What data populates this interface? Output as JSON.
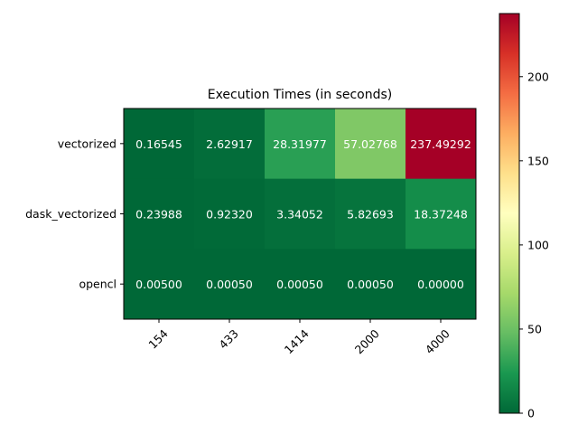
{
  "chart_data": {
    "type": "heatmap",
    "title": "Execution Times (in seconds)",
    "xlabel": "",
    "ylabel": "",
    "x_categories": [
      "154",
      "433",
      "1414",
      "2000",
      "4000"
    ],
    "y_categories": [
      "vectorized",
      "dask_vectorized",
      "opencl"
    ],
    "values": [
      [
        0.16545,
        2.62917,
        28.31977,
        57.02768,
        237.49292
      ],
      [
        0.23988,
        0.9232,
        3.34052,
        5.82693,
        18.37248
      ],
      [
        0.005,
        0.0005,
        0.0005,
        0.0005,
        0.0
      ]
    ],
    "cell_labels": [
      [
        "0.16545",
        "2.62917",
        "28.31977",
        "57.02768",
        "237.49292"
      ],
      [
        "0.23988",
        "0.92320",
        "3.34052",
        "5.82693",
        "18.37248"
      ],
      [
        "0.00500",
        "0.00050",
        "0.00050",
        "0.00050",
        "0.00000"
      ]
    ],
    "colormap": "RdYlGn_r",
    "colorbar": {
      "range": [
        0,
        237.49292
      ],
      "ticks": [
        0,
        50,
        100,
        150,
        200
      ]
    },
    "x_tick_rotation": 45,
    "grid": false
  }
}
